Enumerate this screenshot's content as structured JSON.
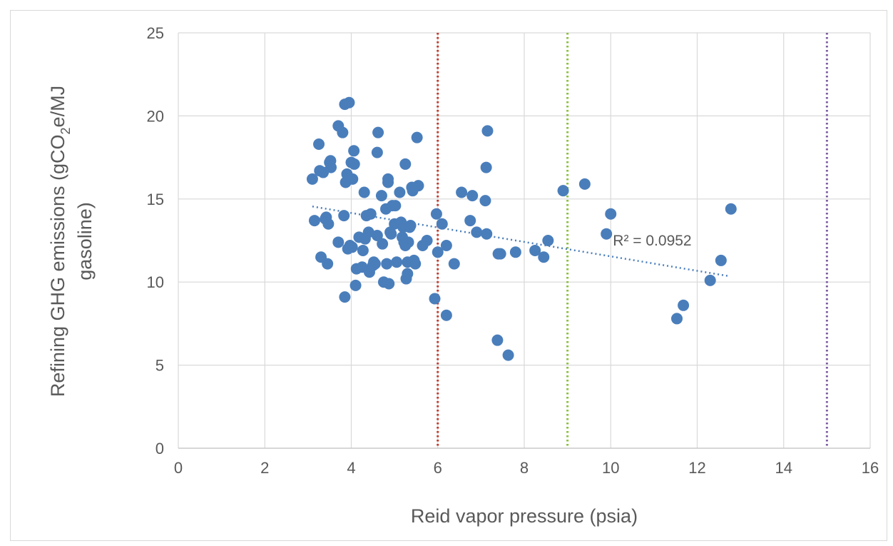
{
  "chart_data": {
    "type": "scatter",
    "xlabel": "Reid vapor pressure (psia)",
    "ylabel_parts": [
      "Refining GHG emissions (gCO",
      "2",
      "e/MJ",
      "gasoline)"
    ],
    "xlim": [
      0,
      16
    ],
    "ylim": [
      0,
      25
    ],
    "x_ticks": [
      "0",
      "2",
      "4",
      "6",
      "8",
      "10",
      "12",
      "14",
      "16"
    ],
    "y_ticks": [
      "0",
      "5",
      "10",
      "15",
      "20",
      "25"
    ],
    "grid": true,
    "point_color": "#4a7ebb",
    "points": [
      [
        3.1,
        16.2
      ],
      [
        3.15,
        13.7
      ],
      [
        3.25,
        18.3
      ],
      [
        3.27,
        16.7
      ],
      [
        3.3,
        11.5
      ],
      [
        3.35,
        16.6
      ],
      [
        3.4,
        13.8
      ],
      [
        3.42,
        13.9
      ],
      [
        3.45,
        11.1
      ],
      [
        3.47,
        13.5
      ],
      [
        3.5,
        17.2
      ],
      [
        3.52,
        17.3
      ],
      [
        3.53,
        16.9
      ],
      [
        3.7,
        19.4
      ],
      [
        3.7,
        12.4
      ],
      [
        3.8,
        19.0
      ],
      [
        3.83,
        14.0
      ],
      [
        3.85,
        9.1
      ],
      [
        3.85,
        20.7
      ],
      [
        3.87,
        16.0
      ],
      [
        3.9,
        16.5
      ],
      [
        3.92,
        12.0
      ],
      [
        3.95,
        20.8
      ],
      [
        3.97,
        12.2
      ],
      [
        4.0,
        17.2
      ],
      [
        4.02,
        12.1
      ],
      [
        4.03,
        16.2
      ],
      [
        4.06,
        17.9
      ],
      [
        4.07,
        17.1
      ],
      [
        4.1,
        9.8
      ],
      [
        4.12,
        10.8
      ],
      [
        4.18,
        12.7
      ],
      [
        4.25,
        10.9
      ],
      [
        4.27,
        11.9
      ],
      [
        4.3,
        15.4
      ],
      [
        4.32,
        12.6
      ],
      [
        4.35,
        14.0
      ],
      [
        4.4,
        13.0
      ],
      [
        4.42,
        10.6
      ],
      [
        4.45,
        14.1
      ],
      [
        4.5,
        11.0
      ],
      [
        4.52,
        11.2
      ],
      [
        4.55,
        11.1
      ],
      [
        4.6,
        12.8
      ],
      [
        4.6,
        17.8
      ],
      [
        4.62,
        19.0
      ],
      [
        4.7,
        15.2
      ],
      [
        4.72,
        12.3
      ],
      [
        4.75,
        10.0
      ],
      [
        4.8,
        14.4
      ],
      [
        4.82,
        11.1
      ],
      [
        4.85,
        16.2
      ],
      [
        4.85,
        16.0
      ],
      [
        4.87,
        9.9
      ],
      [
        4.9,
        13.0
      ],
      [
        4.92,
        12.9
      ],
      [
        4.95,
        14.6
      ],
      [
        5.0,
        13.5
      ],
      [
        5.02,
        14.6
      ],
      [
        5.05,
        11.2
      ],
      [
        5.12,
        15.4
      ],
      [
        5.15,
        13.6
      ],
      [
        5.18,
        12.7
      ],
      [
        5.2,
        13.3
      ],
      [
        5.22,
        12.4
      ],
      [
        5.25,
        12.2
      ],
      [
        5.25,
        17.1
      ],
      [
        5.27,
        10.2
      ],
      [
        5.3,
        10.5
      ],
      [
        5.3,
        11.2
      ],
      [
        5.32,
        12.4
      ],
      [
        5.35,
        13.3
      ],
      [
        5.37,
        13.4
      ],
      [
        5.4,
        15.7
      ],
      [
        5.42,
        15.5
      ],
      [
        5.45,
        11.3
      ],
      [
        5.48,
        11.1
      ],
      [
        5.52,
        18.7
      ],
      [
        5.55,
        15.8
      ],
      [
        5.65,
        12.2
      ],
      [
        5.75,
        12.5
      ],
      [
        5.93,
        9.0
      ],
      [
        5.97,
        14.1
      ],
      [
        6.0,
        11.8
      ],
      [
        6.1,
        13.5
      ],
      [
        6.2,
        12.2
      ],
      [
        6.2,
        8.0
      ],
      [
        6.38,
        11.1
      ],
      [
        6.55,
        15.4
      ],
      [
        6.75,
        13.7
      ],
      [
        6.8,
        15.2
      ],
      [
        6.9,
        13.0
      ],
      [
        7.1,
        14.9
      ],
      [
        7.12,
        16.9
      ],
      [
        7.13,
        12.9
      ],
      [
        7.15,
        19.1
      ],
      [
        7.38,
        6.5
      ],
      [
        7.4,
        11.7
      ],
      [
        7.45,
        11.7
      ],
      [
        7.63,
        5.6
      ],
      [
        7.8,
        11.8
      ],
      [
        8.25,
        11.9
      ],
      [
        8.45,
        11.5
      ],
      [
        8.55,
        12.5
      ],
      [
        8.9,
        15.5
      ],
      [
        9.4,
        15.9
      ],
      [
        9.9,
        12.9
      ],
      [
        10.0,
        14.1
      ],
      [
        11.53,
        7.8
      ],
      [
        11.68,
        8.6
      ],
      [
        12.3,
        10.1
      ],
      [
        12.55,
        11.3
      ],
      [
        12.78,
        14.4
      ]
    ],
    "trendline": {
      "x": [
        3.1,
        12.75
      ],
      "y": [
        14.55,
        10.35
      ],
      "color": "#4a7ebb",
      "label": "R² = 0.0952"
    },
    "reference_lines": [
      {
        "x": 6,
        "color": "#c0392b"
      },
      {
        "x": 9,
        "color": "#8bbf3f"
      },
      {
        "x": 15,
        "color": "#7d5fa3"
      }
    ]
  }
}
